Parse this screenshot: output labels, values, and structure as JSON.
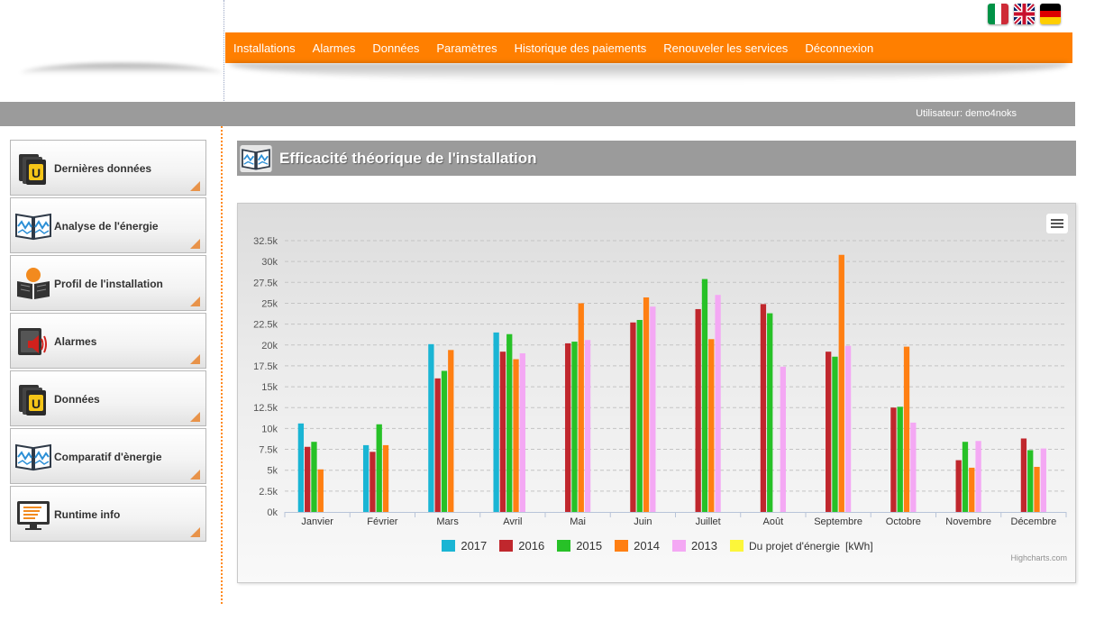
{
  "flags": [
    {
      "name": "italian-flag-icon",
      "colors": [
        "#009246",
        "#ffffff",
        "#ce2b37"
      ]
    },
    {
      "name": "uk-flag-icon",
      "colors": [
        "#012169",
        "#ffffff",
        "#c8102e"
      ]
    },
    {
      "name": "german-flag-icon",
      "colors": [
        "#000000",
        "#dd0000",
        "#ffce00"
      ]
    }
  ],
  "menu": {
    "items": [
      "Installations",
      "Alarmes",
      "Données",
      "Paramètres",
      "Historique des paiements",
      "Renouveler les services",
      "Déconnexion"
    ],
    "color": "#ff7f00"
  },
  "userbar": {
    "user_label": "Utilisateur: demo4noks"
  },
  "sidebar": {
    "items": [
      {
        "label": "Dernières données",
        "icon": "u-binder-icon"
      },
      {
        "label": "Analyse de l'énergie",
        "icon": "open-book-chart-icon"
      },
      {
        "label": "Profil de l'installation",
        "icon": "user-book-icon"
      },
      {
        "label": "Alarmes",
        "icon": "speaker-book-icon"
      },
      {
        "label": "Données",
        "icon": "u-binder-icon"
      },
      {
        "label": "Comparatif d'ènergie",
        "icon": "open-book-chart-icon"
      },
      {
        "label": "Runtime info",
        "icon": "monitor-icon"
      }
    ]
  },
  "section": {
    "title": "Efficacité théorique de l'installation",
    "icon": "open-book-chart-icon"
  },
  "chart_data": {
    "type": "bar",
    "categories": [
      "Janvier",
      "Février",
      "Mars",
      "Avril",
      "Mai",
      "Juin",
      "Juillet",
      "Août",
      "Septembre",
      "Octobre",
      "Novembre",
      "Décembre"
    ],
    "ylim": [
      0,
      32500
    ],
    "yticks": [
      0,
      2500,
      5000,
      7500,
      10000,
      12500,
      15000,
      17500,
      20000,
      22500,
      25000,
      27500,
      30000,
      32500
    ],
    "ytick_labels": [
      "0k",
      "2.5k",
      "5k",
      "7.5k",
      "10k",
      "12.5k",
      "15k",
      "17.5k",
      "20k",
      "22.5k",
      "25k",
      "27.5k",
      "30k",
      "32.5k"
    ],
    "grid": true,
    "legend_position": "bottom",
    "unit": "[kWh]",
    "series": [
      {
        "name": "2017",
        "color": "#1ab5d4",
        "values": [
          10600,
          8000,
          20100,
          21500,
          null,
          null,
          null,
          null,
          null,
          null,
          null,
          null
        ]
      },
      {
        "name": "2016",
        "color": "#c0272d",
        "values": [
          7800,
          7200,
          16000,
          19200,
          20200,
          22700,
          24300,
          24900,
          19200,
          12500,
          6200,
          8800
        ]
      },
      {
        "name": "2015",
        "color": "#27c127",
        "values": [
          8400,
          10500,
          16900,
          21300,
          20400,
          23000,
          27900,
          23800,
          18600,
          12600,
          8400,
          7400
        ]
      },
      {
        "name": "2014",
        "color": "#ff7f12",
        "values": [
          5100,
          8000,
          19400,
          18300,
          25000,
          25700,
          20700,
          null,
          30800,
          19800,
          5300,
          5400
        ]
      },
      {
        "name": "2013",
        "color": "#f4a8f4",
        "values": [
          null,
          null,
          null,
          19000,
          20600,
          24600,
          26000,
          17400,
          19900,
          10700,
          8500,
          7600
        ]
      },
      {
        "name": "Du projet d'énergie",
        "color": "#fcf63a",
        "values": [
          null,
          null,
          null,
          null,
          null,
          null,
          null,
          null,
          null,
          null,
          null,
          null
        ]
      }
    ],
    "credits": "Highcharts.com"
  }
}
